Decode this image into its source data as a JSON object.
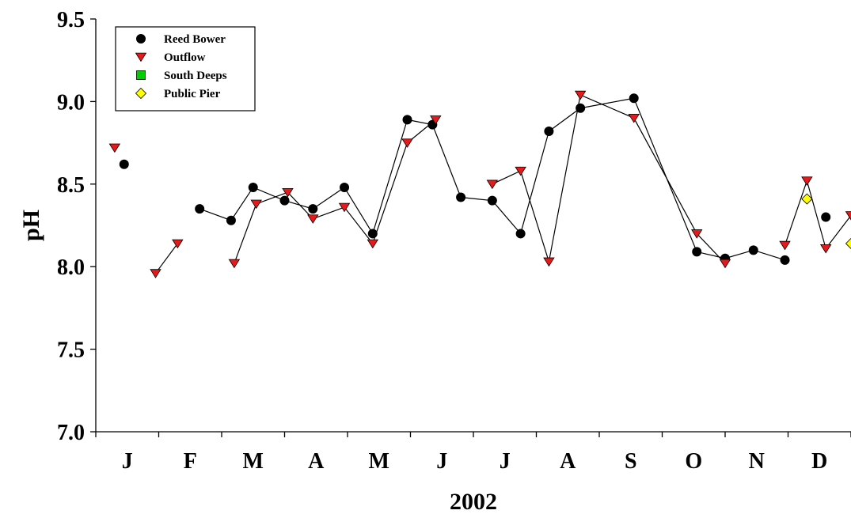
{
  "chart_data": {
    "type": "scatter",
    "title": "",
    "xlabel": "2002",
    "ylabel": "pH",
    "ylim": [
      7.0,
      9.5
    ],
    "yticks": [
      "7.0",
      "7.5",
      "8.0",
      "8.5",
      "9.0",
      "9.5"
    ],
    "xlim": [
      0,
      12
    ],
    "month_labels": [
      "J",
      "F",
      "M",
      "A",
      "M",
      "J",
      "J",
      "A",
      "S",
      "O",
      "N",
      "D"
    ],
    "grid": false,
    "legend_position": "top-left",
    "series": [
      {
        "name": "Reed Bower",
        "marker": "circle",
        "color": "#000000",
        "segments": [
          [
            [
              0.45,
              8.62
            ]
          ],
          [
            [
              1.65,
              8.35
            ],
            [
              2.15,
              8.28
            ],
            [
              2.5,
              8.48
            ],
            [
              3.0,
              8.4
            ],
            [
              3.45,
              8.35
            ],
            [
              3.95,
              8.48
            ],
            [
              4.4,
              8.2
            ],
            [
              4.95,
              8.89
            ],
            [
              5.35,
              8.86
            ],
            [
              5.8,
              8.42
            ],
            [
              6.3,
              8.4
            ],
            [
              6.75,
              8.2
            ],
            [
              7.2,
              8.82
            ],
            [
              7.7,
              8.96
            ],
            [
              8.55,
              9.02
            ],
            [
              9.55,
              8.09
            ],
            [
              10.0,
              8.05
            ],
            [
              10.45,
              8.1
            ],
            [
              10.95,
              8.04
            ]
          ],
          [
            [
              11.6,
              8.3
            ]
          ]
        ]
      },
      {
        "name": "Outflow",
        "marker": "triangle-down",
        "color": "#e8191b",
        "segments": [
          [
            [
              0.3,
              8.72
            ]
          ],
          [
            [
              0.95,
              7.96
            ],
            [
              1.3,
              8.14
            ]
          ],
          [
            [
              2.2,
              8.02
            ],
            [
              2.55,
              8.38
            ],
            [
              3.05,
              8.45
            ],
            [
              3.45,
              8.29
            ],
            [
              3.95,
              8.36
            ],
            [
              4.4,
              8.14
            ],
            [
              4.95,
              8.75
            ],
            [
              5.4,
              8.89
            ]
          ],
          [
            [
              6.3,
              8.5
            ],
            [
              6.75,
              8.58
            ],
            [
              7.2,
              8.03
            ],
            [
              7.7,
              9.04
            ],
            [
              8.55,
              8.9
            ],
            [
              9.55,
              8.2
            ],
            [
              10.0,
              8.02
            ]
          ],
          [
            [
              10.95,
              8.13
            ],
            [
              11.3,
              8.52
            ],
            [
              11.6,
              8.11
            ],
            [
              12.0,
              8.31
            ]
          ]
        ]
      },
      {
        "name": "South Deeps",
        "marker": "square",
        "color": "#00cc00",
        "segments": []
      },
      {
        "name": "Public Pier",
        "marker": "diamond",
        "color": "#ffff00",
        "segments": [
          [
            [
              11.3,
              8.41
            ]
          ],
          [
            [
              12.0,
              8.14
            ]
          ]
        ]
      }
    ]
  }
}
